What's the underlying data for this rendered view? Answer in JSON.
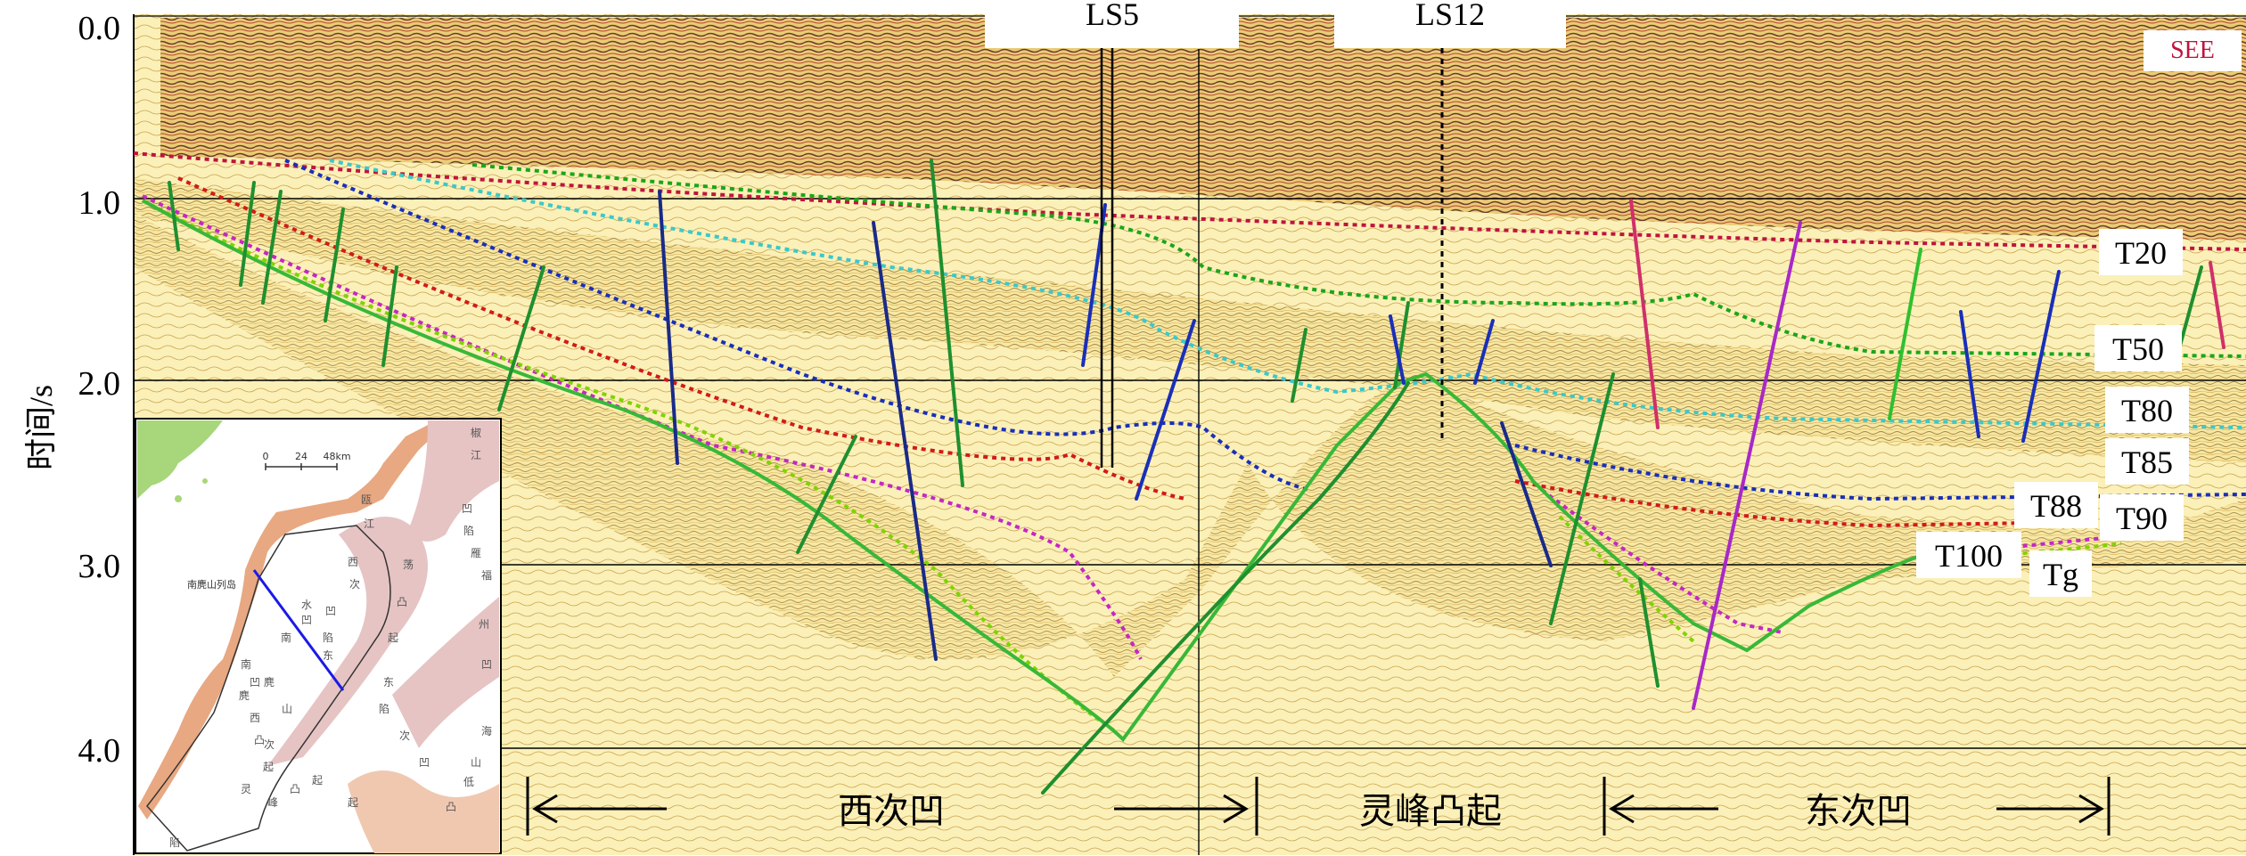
{
  "y_axis": {
    "label": "时间/s",
    "ticks": [
      "0.0",
      "1.0",
      "2.0",
      "3.0",
      "4.0"
    ]
  },
  "wells": [
    {
      "name": "LS5"
    },
    {
      "name": "LS12"
    }
  ],
  "direction_label": "SEE",
  "horizons": [
    {
      "name": "T20",
      "color": "#c0143c"
    },
    {
      "name": "T50",
      "color": "#1aa61a"
    },
    {
      "name": "T80",
      "color": "#3cc8c8"
    },
    {
      "name": "T85",
      "color": "#1a2fb8"
    },
    {
      "name": "T88",
      "color": "#d21a1a"
    },
    {
      "name": "T90",
      "color": "#c428c4"
    },
    {
      "name": "T100",
      "color": "#7fd400"
    },
    {
      "name": "Tg",
      "color": "#38b838"
    }
  ],
  "zones": [
    {
      "name": "西次凹"
    },
    {
      "name": "灵峰凸起"
    },
    {
      "name": "东次凹"
    }
  ],
  "inset_map": {
    "scale_labels": [
      "0",
      "24",
      "48km"
    ],
    "region_labels": [
      "椒",
      "江",
      "凹",
      "陷",
      "雁",
      "荡",
      "凸",
      "起",
      "福",
      "州",
      "凹",
      "陷",
      "瓯",
      "江",
      "凹",
      "陷",
      "南",
      "麂",
      "山",
      "凸",
      "起",
      "海",
      "山",
      "低",
      "凸",
      "起",
      "西",
      "次",
      "凹",
      "东",
      "水",
      "南",
      "麂",
      "西",
      "次",
      "凹",
      "灵",
      "峰",
      "凸",
      "起",
      "东",
      "次",
      "凹",
      "陷"
    ],
    "city_label": "南麂山列岛",
    "colors": {
      "land": "#a8d67a",
      "coast_band": "#e8a882",
      "uplift": "#e6c4c4",
      "line": "#1a1ae6"
    }
  }
}
